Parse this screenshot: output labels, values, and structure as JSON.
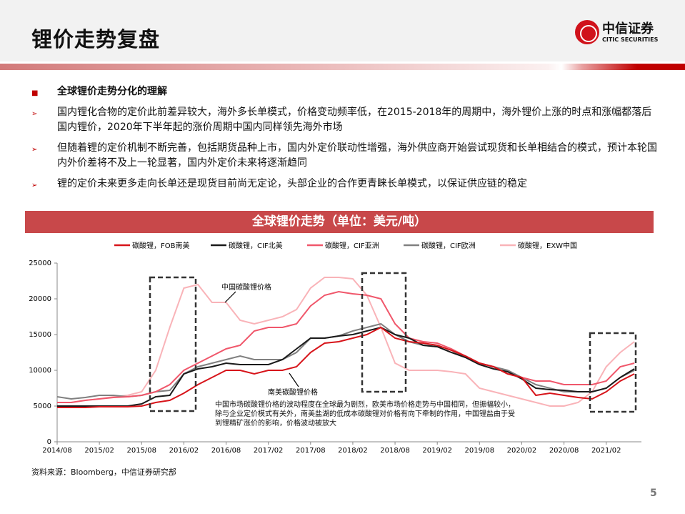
{
  "header": {
    "title": "锂价走势复盘",
    "logo_zh": "中信证券",
    "logo_en": "CITIC SECURITIES"
  },
  "bullets": {
    "heading": "全球锂价走势分化的理解",
    "items": [
      "国内锂化合物的定价此前差异较大，海外多长单模式，价格变动频率低，在2015-2018年的周期中，海外锂价上涨的时点和涨幅都落后国内锂价，2020年下半年起的涨价周期中国内同样领先海外市场",
      "但随着锂的定价机制不断完善，包括期货品种上市，国内外定价联动性增强，海外供应商开始尝试现货和长单相结合的模式，预计本轮国内外价差将不及上一轮显著，国内外定价未来将逐渐趋同",
      "锂的定价未来更多走向长单还是现货目前尚无定论，头部企业的合作更青睐长单模式，以保证供应链的稳定"
    ]
  },
  "source": "资料来源：Bloomberg，中信证券研究部",
  "page_number": "5",
  "chart_data": {
    "type": "line",
    "title": "全球锂价走势（单位：美元/吨）",
    "ylim": [
      0,
      25000
    ],
    "yticks": [
      "0",
      "5000",
      "10000",
      "15000",
      "20000",
      "25000"
    ],
    "xticks": [
      "2014/08",
      "2015/02",
      "2015/08",
      "2016/02",
      "2016/08",
      "2017/02",
      "2017/08",
      "2018/02",
      "2018/08",
      "2019/02",
      "2019/08",
      "2020/02",
      "2020/08",
      "2021/02"
    ],
    "x": [
      "2014/08",
      "2014/10",
      "2014/12",
      "2015/02",
      "2015/04",
      "2015/06",
      "2015/08",
      "2015/10",
      "2015/12",
      "2016/02",
      "2016/04",
      "2016/06",
      "2016/08",
      "2016/10",
      "2016/12",
      "2017/02",
      "2017/04",
      "2017/06",
      "2017/08",
      "2017/10",
      "2017/12",
      "2018/02",
      "2018/04",
      "2018/06",
      "2018/08",
      "2018/10",
      "2018/12",
      "2019/02",
      "2019/04",
      "2019/06",
      "2019/08",
      "2019/10",
      "2019/12",
      "2020/02",
      "2020/04",
      "2020/06",
      "2020/08",
      "2020/10",
      "2020/12",
      "2021/02",
      "2021/04",
      "2021/06"
    ],
    "series": [
      {
        "name": "碳酸锂，FOB南美",
        "color": "#d7141a",
        "values": [
          4800,
          4800,
          4800,
          4900,
          4900,
          4900,
          5000,
          5500,
          5800,
          6800,
          8000,
          9000,
          10000,
          10000,
          9500,
          10000,
          10000,
          10500,
          12500,
          13800,
          14000,
          14500,
          15000,
          16000,
          14500,
          14000,
          13800,
          13500,
          12800,
          12000,
          11000,
          10500,
          9500,
          9000,
          6500,
          6800,
          6500,
          6200,
          6000,
          7000,
          8500,
          9500
        ]
      },
      {
        "name": "碳酸锂，CIF北美",
        "color": "#1a1a1a",
        "values": [
          5000,
          5000,
          5000,
          5000,
          5000,
          5000,
          5300,
          6300,
          6500,
          9500,
          10200,
          10500,
          11000,
          10800,
          10800,
          10800,
          11500,
          13000,
          14500,
          14500,
          14800,
          15000,
          15500,
          16000,
          15000,
          14500,
          13500,
          13300,
          12500,
          11800,
          10800,
          10200,
          9800,
          8800,
          7500,
          7300,
          7200,
          7000,
          7000,
          7500,
          9000,
          10200
        ]
      },
      {
        "name": "碳酸锂，CIF亚洲",
        "color": "#f0576b",
        "values": [
          5500,
          5500,
          5800,
          6000,
          6200,
          6300,
          6500,
          7000,
          8000,
          10000,
          11000,
          12000,
          13000,
          13500,
          15500,
          16000,
          16000,
          16500,
          19000,
          20500,
          21000,
          20700,
          20500,
          20000,
          16500,
          14500,
          14000,
          13800,
          13000,
          12000,
          11000,
          10500,
          9500,
          9000,
          8500,
          8500,
          8000,
          8000,
          8000,
          8500,
          10500,
          11000
        ]
      },
      {
        "name": "碳酸锂，CIF欧洲",
        "color": "#808080",
        "values": [
          6300,
          6000,
          6200,
          6500,
          6500,
          6300,
          6500,
          7000,
          7200,
          9500,
          10500,
          11000,
          11500,
          12000,
          11500,
          11500,
          11500,
          12500,
          14500,
          14500,
          14800,
          15500,
          16000,
          16500,
          15000,
          14000,
          13500,
          13300,
          12500,
          12000,
          11000,
          10500,
          10000,
          9000,
          8000,
          7500,
          7000,
          7000,
          7000,
          7500,
          9000,
          10000
        ]
      },
      {
        "name": "碳酸锂，EXW中国",
        "color": "#f9b3b8",
        "values": [
          5500,
          5500,
          5800,
          6000,
          6300,
          6500,
          7000,
          10000,
          16000,
          21500,
          22000,
          19500,
          19500,
          17000,
          16500,
          17000,
          17500,
          18500,
          21500,
          23000,
          23000,
          22800,
          20500,
          16000,
          11000,
          10000,
          10000,
          10000,
          9800,
          9500,
          7500,
          7000,
          6500,
          6000,
          5500,
          5000,
          5000,
          5500,
          7000,
          10500,
          12500,
          14000
        ]
      }
    ],
    "annotations": {
      "china": "中国碳酸锂价格",
      "south_america": "南美碳酸锂价格",
      "note": "中国市场碳酸锂价格的波动程度在全球最为剧烈，欧美市场价格走势与中国相同，但振幅较小，除与企业定价模式有关外，南美盐湖的低成本碳酸锂对价格有向下牵制的作用，中国锂盐由于受到锂精矿涨价的影响，价格波动被放大"
    },
    "legend_position": "top"
  }
}
